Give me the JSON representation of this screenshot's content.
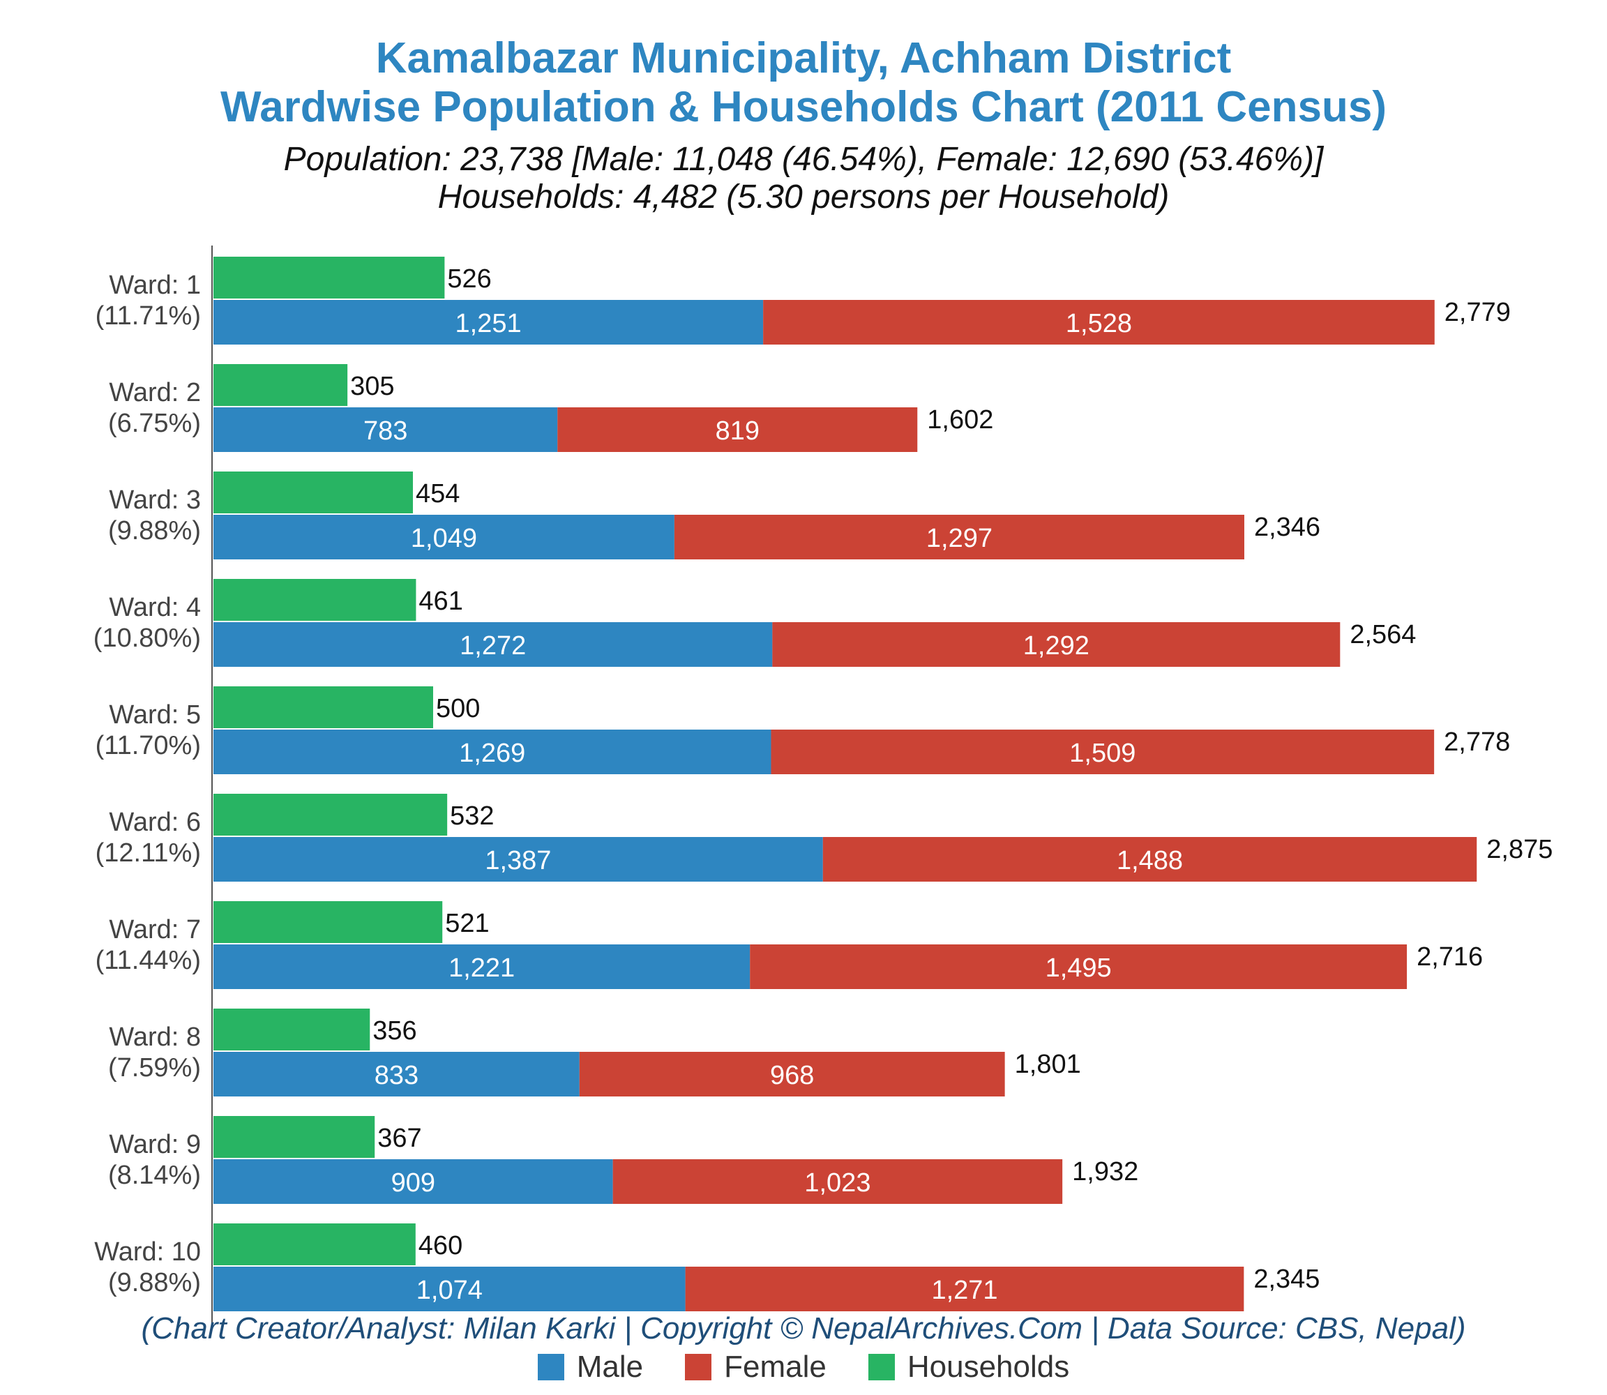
{
  "chart_data": {
    "type": "bar",
    "orientation": "horizontal",
    "stacked_population": true,
    "title": "Kamalbazar Municipality, Achham District",
    "title_line2": "Wardwise Population & Households Chart (2011 Census)",
    "subtitle": "Population: 23,738 [Male: 11,048 (46.54%), Female: 12,690 (53.46%)]",
    "subtitle_line2": "Households: 4,482 (5.30 persons per Household)",
    "credit": "(Chart Creator/Analyst: Milan Karki | Copyright © NepalArchives.Com | Data Source: CBS, Nepal)",
    "legend_position": "bottom",
    "xlim": [
      0,
      3000
    ],
    "colors": {
      "male": "#2e86c1",
      "female": "#cb4335",
      "households": "#28b463",
      "axis": "#555555"
    },
    "legend": [
      "Male",
      "Female",
      "Households"
    ],
    "wards": [
      {
        "label": "Ward: 1",
        "pct": "(11.71%)",
        "households": 526,
        "male": 1251,
        "female": 1528,
        "total": 2779,
        "households_label": "526",
        "male_label": "1,251",
        "female_label": "1,528",
        "total_label": "2,779"
      },
      {
        "label": "Ward: 2",
        "pct": "(6.75%)",
        "households": 305,
        "male": 783,
        "female": 819,
        "total": 1602,
        "households_label": "305",
        "male_label": "783",
        "female_label": "819",
        "total_label": "1,602"
      },
      {
        "label": "Ward: 3",
        "pct": "(9.88%)",
        "households": 454,
        "male": 1049,
        "female": 1297,
        "total": 2346,
        "households_label": "454",
        "male_label": "1,049",
        "female_label": "1,297",
        "total_label": "2,346"
      },
      {
        "label": "Ward: 4",
        "pct": "(10.80%)",
        "households": 461,
        "male": 1272,
        "female": 1292,
        "total": 2564,
        "households_label": "461",
        "male_label": "1,272",
        "female_label": "1,292",
        "total_label": "2,564"
      },
      {
        "label": "Ward: 5",
        "pct": "(11.70%)",
        "households": 500,
        "male": 1269,
        "female": 1509,
        "total": 2778,
        "households_label": "500",
        "male_label": "1,269",
        "female_label": "1,509",
        "total_label": "2,778"
      },
      {
        "label": "Ward: 6",
        "pct": "(12.11%)",
        "households": 532,
        "male": 1387,
        "female": 1488,
        "total": 2875,
        "households_label": "532",
        "male_label": "1,387",
        "female_label": "1,488",
        "total_label": "2,875"
      },
      {
        "label": "Ward: 7",
        "pct": "(11.44%)",
        "households": 521,
        "male": 1221,
        "female": 1495,
        "total": 2716,
        "households_label": "521",
        "male_label": "1,221",
        "female_label": "1,495",
        "total_label": "2,716"
      },
      {
        "label": "Ward: 8",
        "pct": "(7.59%)",
        "households": 356,
        "male": 833,
        "female": 968,
        "total": 1801,
        "households_label": "356",
        "male_label": "833",
        "female_label": "968",
        "total_label": "1,801"
      },
      {
        "label": "Ward: 9",
        "pct": "(8.14%)",
        "households": 367,
        "male": 909,
        "female": 1023,
        "total": 1932,
        "households_label": "367",
        "male_label": "909",
        "female_label": "1,023",
        "total_label": "1,932"
      },
      {
        "label": "Ward: 10",
        "pct": "(9.88%)",
        "households": 460,
        "male": 1074,
        "female": 1271,
        "total": 2345,
        "households_label": "460",
        "male_label": "1,074",
        "female_label": "1,271",
        "total_label": "2,345"
      }
    ]
  }
}
